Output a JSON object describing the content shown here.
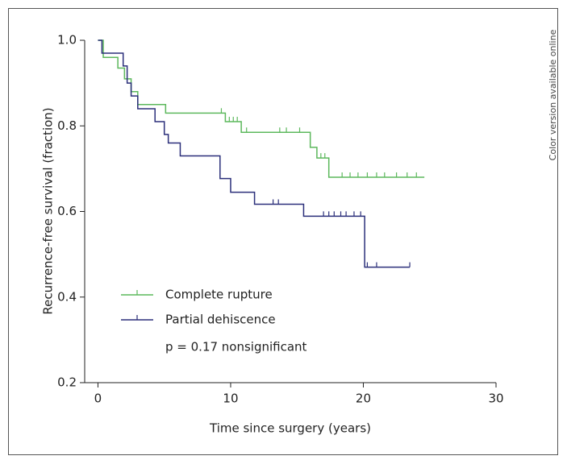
{
  "chart_data": {
    "type": "km",
    "side_note": "Color version available online",
    "xlabel": "Time since surgery (years)",
    "ylabel": "Recurrence-free survival (fraction)",
    "annotation": "p = 0.17 nonsignificant",
    "xlim": [
      -1,
      30
    ],
    "ylim": [
      0.2,
      1.0
    ],
    "xticks": [
      0,
      10,
      20,
      30
    ],
    "yticks": [
      0.2,
      0.4,
      0.6,
      {
        "value": 1,
        "label": "1.0"
      },
      0.8
    ],
    "series": [
      {
        "name": "Complete rupture",
        "color": "#5cb85c",
        "x": [
          0,
          0.4,
          1.5,
          2.0,
          2.5,
          3.0,
          5.1,
          9.6,
          10.8,
          16.0,
          16.5,
          17.4,
          24.6
        ],
        "values": [
          1.0,
          0.96,
          0.935,
          0.91,
          0.88,
          0.85,
          0.83,
          0.81,
          0.785,
          0.75,
          0.725,
          0.68,
          0.68
        ],
        "censored": [
          9.3,
          9.9,
          10.2,
          10.5,
          11.2,
          13.7,
          14.2,
          15.2,
          16.8,
          17.1,
          18.4,
          19.0,
          19.6,
          20.3,
          21.0,
          21.6,
          22.5,
          23.3,
          24.0
        ]
      },
      {
        "name": "Partial dehiscence",
        "color": "#2b2f7a",
        "x": [
          0,
          0.3,
          1.9,
          2.2,
          2.5,
          3.0,
          4.3,
          5.0,
          5.3,
          6.2,
          9.2,
          10.0,
          11.8,
          15.5,
          20.1,
          23.5
        ],
        "values": [
          1.0,
          0.97,
          0.94,
          0.9,
          0.87,
          0.84,
          0.81,
          0.78,
          0.76,
          0.73,
          0.677,
          0.645,
          0.617,
          0.589,
          0.47,
          0.47
        ],
        "censored": [
          13.2,
          13.6,
          17.0,
          17.4,
          17.8,
          18.3,
          18.7,
          19.3,
          19.8,
          20.3,
          21.0,
          23.5
        ]
      }
    ]
  }
}
